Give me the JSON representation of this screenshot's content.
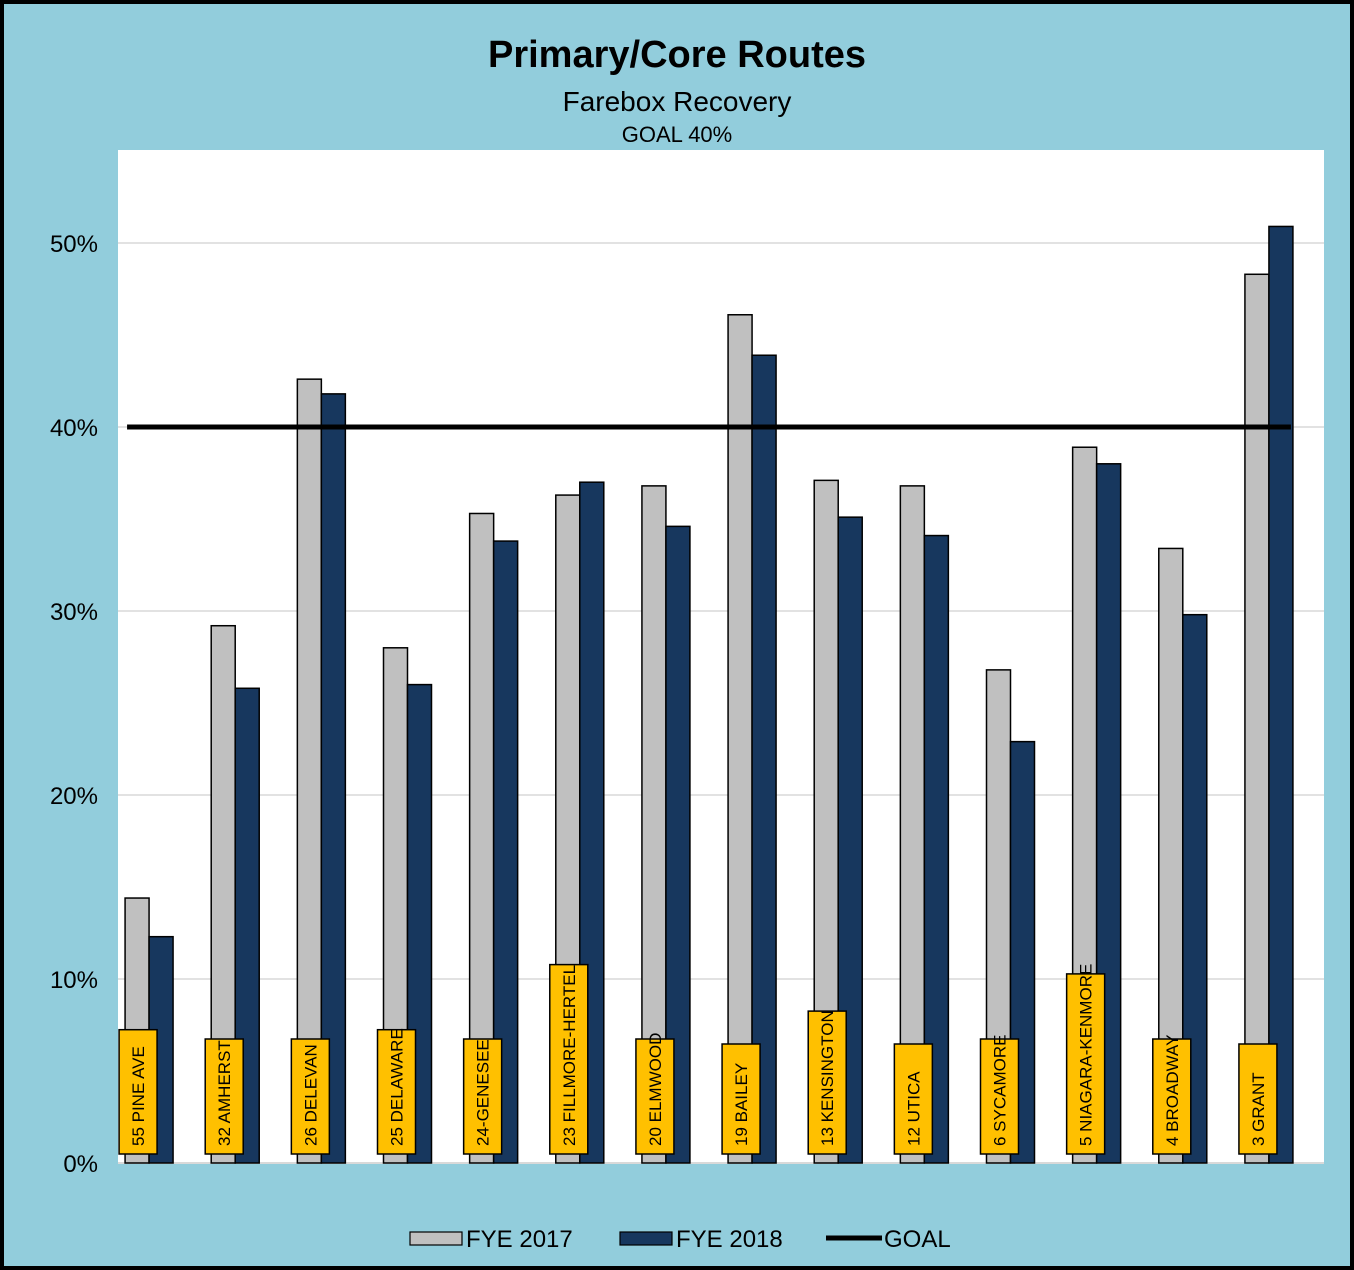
{
  "chart_data": {
    "type": "bar",
    "title": "Primary/Core Routes",
    "subtitle": "Farebox Recovery",
    "goal_text": "GOAL 40%",
    "categories": [
      "55 PINE AVE",
      "32 AMHERST",
      "26 DELEVAN",
      "25 DELAWARE",
      "24-GENESEE",
      "23 FILLMORE-HERTEL",
      "20 ELMWOOD",
      "19 BAILEY",
      "13 KENSINGTON",
      "12 UTICA",
      "6 SYCAMORE",
      "5 NIAGARA-KENMORE",
      "4 BROADWAY",
      "3 GRANT"
    ],
    "series": [
      {
        "name": "FYE 2017",
        "color": "#c0c0c0",
        "values": [
          14.4,
          29.2,
          42.6,
          28.0,
          35.3,
          36.3,
          36.8,
          46.1,
          37.1,
          36.8,
          26.8,
          38.9,
          33.4,
          48.3
        ]
      },
      {
        "name": "FYE 2018",
        "color": "#17375e",
        "values": [
          12.3,
          25.8,
          41.8,
          26.0,
          33.8,
          37.0,
          34.6,
          43.9,
          35.1,
          34.1,
          22.9,
          38.0,
          29.8,
          50.9
        ]
      }
    ],
    "goal": {
      "name": "GOAL",
      "value": 40,
      "color": "#000000"
    },
    "yticks": [
      "0%",
      "10%",
      "20%",
      "30%",
      "40%",
      "50%"
    ],
    "ylim": [
      0,
      55
    ],
    "grid": true,
    "legend_position": "bottom",
    "label_box_color": "#ffc000"
  }
}
